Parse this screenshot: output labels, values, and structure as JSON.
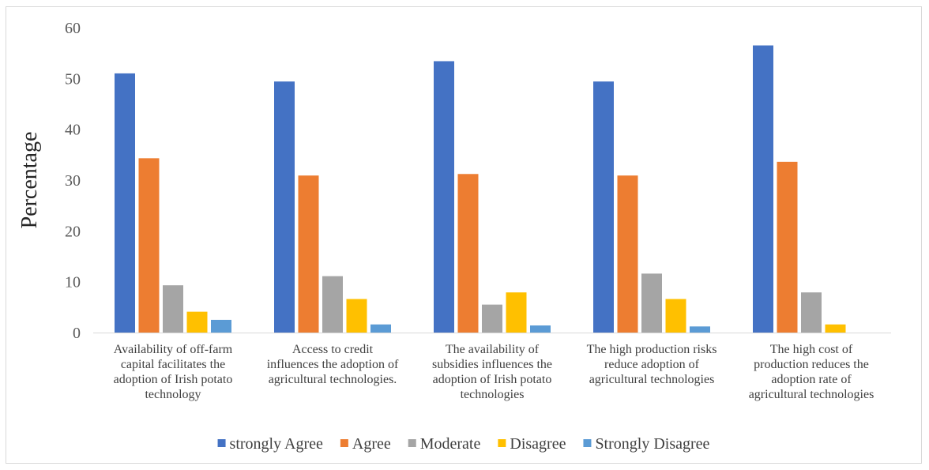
{
  "chart_data": {
    "type": "bar",
    "title": "",
    "xlabel": "",
    "ylabel": "Percentage",
    "ylim": [
      0,
      60
    ],
    "yticks": [
      0,
      10,
      20,
      30,
      40,
      50,
      60
    ],
    "grid": false,
    "legend_position": "bottom",
    "categories": [
      [
        "Availability of off-farm",
        "capital facilitates the",
        "adoption of Irish potato",
        "technology"
      ],
      [
        "Access to credit",
        "influences the adoption of",
        "agricultural technologies."
      ],
      [
        "The availability of",
        "subsidies influences the",
        "adoption of Irish potato",
        "technologies"
      ],
      [
        "The high production risks",
        "reduce adoption of",
        "agricultural technologies"
      ],
      [
        "The high cost of",
        "production reduces the",
        "adoption rate of",
        "agricultural technologies"
      ]
    ],
    "series": [
      {
        "name": "strongly Agree",
        "color": "#4472c4",
        "values": [
          51.0,
          49.4,
          53.4,
          49.4,
          56.5
        ]
      },
      {
        "name": "Agree",
        "color": "#ed7d31",
        "values": [
          34.3,
          30.9,
          31.2,
          30.9,
          33.6
        ]
      },
      {
        "name": "Moderate",
        "color": "#a5a5a5",
        "values": [
          9.3,
          11.1,
          5.5,
          11.6,
          7.9
        ]
      },
      {
        "name": "Disagree",
        "color": "#ffc000",
        "values": [
          4.1,
          6.6,
          7.9,
          6.6,
          1.6
        ]
      },
      {
        "name": "Strongly Disagree",
        "color": "#5b9bd5",
        "values": [
          2.5,
          1.6,
          1.4,
          1.2,
          0
        ]
      }
    ]
  }
}
